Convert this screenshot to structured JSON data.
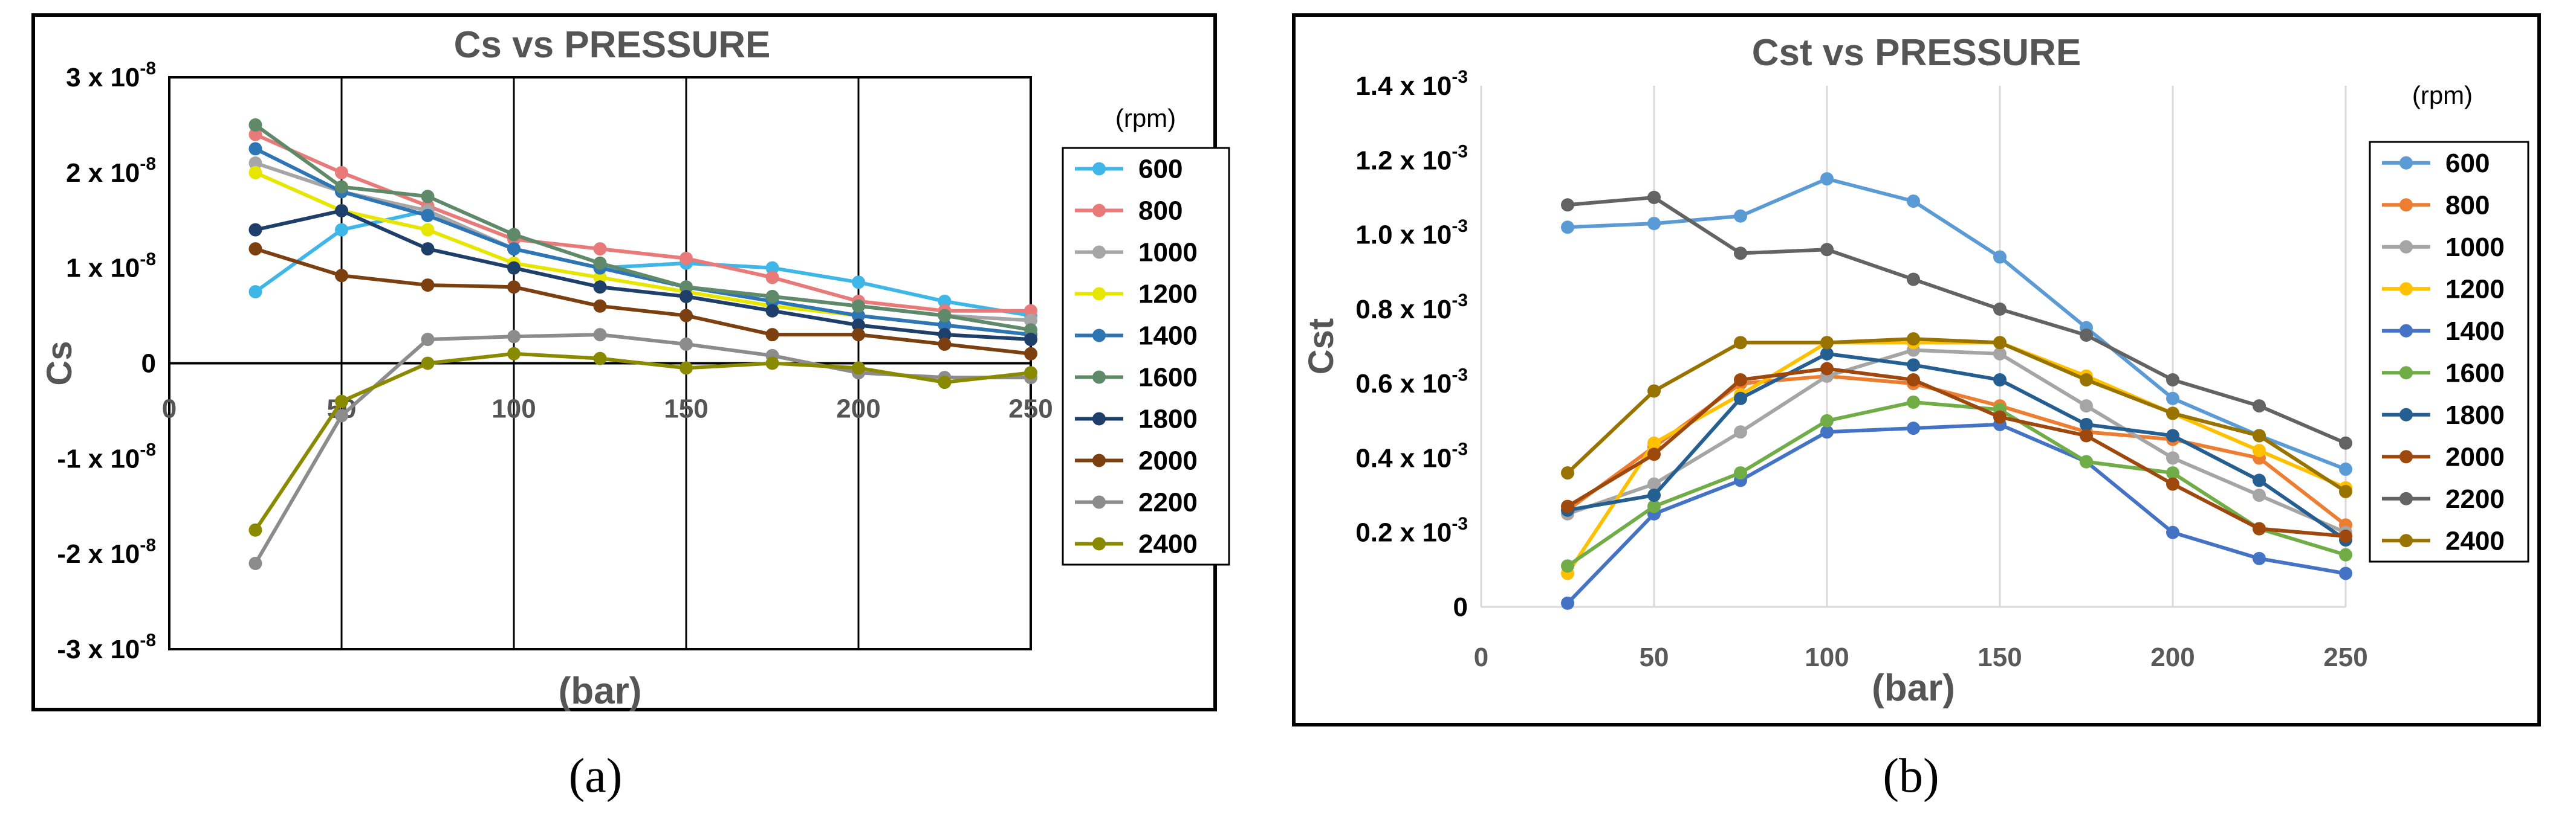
{
  "panel_labels": [
    "(a)",
    "(b)"
  ],
  "chart_data": [
    {
      "type": "line",
      "title": "Cs vs PRESSURE",
      "xlabel": "(bar)",
      "ylabel": "Cs",
      "legend_title": "(rpm)",
      "legend_position": "right",
      "grid": "vertical",
      "x": [
        25,
        50,
        75,
        100,
        125,
        150,
        175,
        200,
        225,
        250
      ],
      "xticks": [
        "0",
        "50",
        "100",
        "150",
        "200",
        "250"
      ],
      "xlim": [
        0,
        250
      ],
      "ylim": [
        -3e-08,
        3e-08
      ],
      "yticks": [
        {
          "mantissa": "3 x 10",
          "exp": "-8",
          "value": 3e-08
        },
        {
          "mantissa": "2 x 10",
          "exp": "-8",
          "value": 2e-08
        },
        {
          "mantissa": "1 x 10",
          "exp": "-8",
          "value": 1e-08
        },
        {
          "mantissa": "0",
          "exp": "",
          "value": 0
        },
        {
          "mantissa": "-1 x 10",
          "exp": "-8",
          "value": -1e-08
        },
        {
          "mantissa": "-2 x 10",
          "exp": "-8",
          "value": -2e-08
        },
        {
          "mantissa": "-3 x 10",
          "exp": "-8",
          "value": -3e-08
        }
      ],
      "series": [
        {
          "name": "600",
          "color": "#3fb6e8",
          "values": [
            7.5e-09,
            1.4e-08,
            1.6e-08,
            1.2e-08,
            1e-08,
            1.05e-08,
            1e-08,
            8.5e-09,
            6.5e-09,
            5e-09
          ]
        },
        {
          "name": "800",
          "color": "#e97a7a",
          "values": [
            2.4e-08,
            2e-08,
            1.65e-08,
            1.3e-08,
            1.2e-08,
            1.1e-08,
            9e-09,
            6.5e-09,
            5.5e-09,
            5.5e-09
          ]
        },
        {
          "name": "1000",
          "color": "#a6a6a6",
          "values": [
            2.1e-08,
            1.8e-08,
            1.6e-08,
            1.2e-08,
            1e-08,
            8e-09,
            7e-09,
            6e-09,
            5e-09,
            4.5e-09
          ]
        },
        {
          "name": "1200",
          "color": "#e6e600",
          "values": [
            2e-08,
            1.6e-08,
            1.4e-08,
            1.05e-08,
            9e-09,
            7.5e-09,
            6e-09,
            5e-09,
            4e-09,
            3e-09
          ]
        },
        {
          "name": "1400",
          "color": "#2e75b6",
          "values": [
            2.25e-08,
            1.8e-08,
            1.55e-08,
            1.2e-08,
            1e-08,
            8e-09,
            6.5e-09,
            5e-09,
            4e-09,
            3e-09
          ]
        },
        {
          "name": "1600",
          "color": "#5f8a6a",
          "values": [
            2.5e-08,
            1.85e-08,
            1.75e-08,
            1.35e-08,
            1.05e-08,
            8e-09,
            7e-09,
            6e-09,
            5e-09,
            3.5e-09
          ]
        },
        {
          "name": "1800",
          "color": "#1f3f6b",
          "values": [
            1.4e-08,
            1.6e-08,
            1.2e-08,
            1e-08,
            8e-09,
            7e-09,
            5.5e-09,
            4e-09,
            3e-09,
            2.5e-09
          ]
        },
        {
          "name": "2000",
          "color": "#7b3f10",
          "values": [
            1.2e-08,
            9.2e-09,
            8.2e-09,
            8e-09,
            6e-09,
            5e-09,
            3e-09,
            3e-09,
            2e-09,
            1e-09
          ]
        },
        {
          "name": "2200",
          "color": "#8c8c8c",
          "values": [
            -2.1e-08,
            -5.5e-09,
            2.5e-09,
            2.8e-09,
            3e-09,
            2e-09,
            8e-10,
            -1e-09,
            -1.5e-09,
            -1.5e-09
          ]
        },
        {
          "name": "2400",
          "color": "#8a8a00",
          "values": [
            -1.75e-08,
            -4e-09,
            0.0,
            1e-09,
            5e-10,
            -5e-10,
            0.0,
            -5e-10,
            -2e-09,
            -1e-09
          ]
        }
      ]
    },
    {
      "type": "line",
      "title": "Cst vs PRESSURE",
      "xlabel": "(bar)",
      "ylabel": "Cst",
      "legend_title": "(rpm)",
      "legend_position": "right",
      "grid": "vertical",
      "x": [
        25,
        50,
        75,
        100,
        125,
        150,
        175,
        200,
        225,
        250
      ],
      "xticks": [
        "0",
        "50",
        "100",
        "150",
        "200",
        "250"
      ],
      "xlim": [
        0,
        250
      ],
      "ylim": [
        0,
        0.0014
      ],
      "yticks": [
        {
          "mantissa": "1.4 x 10",
          "exp": "-3",
          "value": 0.0014
        },
        {
          "mantissa": "1.2 x 10",
          "exp": "-3",
          "value": 0.0012
        },
        {
          "mantissa": "1.0 x 10",
          "exp": "-3",
          "value": 0.001
        },
        {
          "mantissa": "0.8 x 10",
          "exp": "-3",
          "value": 0.0008
        },
        {
          "mantissa": "0.6 x 10",
          "exp": "-3",
          "value": 0.0006
        },
        {
          "mantissa": "0.4 x 10",
          "exp": "-3",
          "value": 0.0004
        },
        {
          "mantissa": "0.2 x 10",
          "exp": "-3",
          "value": 0.0002
        },
        {
          "mantissa": "0",
          "exp": "",
          "value": 0
        }
      ],
      "series": [
        {
          "name": "600",
          "color": "#5b9bd5",
          "values": [
            0.00102,
            0.00103,
            0.00105,
            0.00115,
            0.00109,
            0.00094,
            0.00075,
            0.00056,
            0.00046,
            0.00037
          ]
        },
        {
          "name": "800",
          "color": "#ed7d31",
          "values": [
            0.00026,
            0.00043,
            0.0006,
            0.00062,
            0.0006,
            0.00054,
            0.00047,
            0.00045,
            0.0004,
            0.00022
          ]
        },
        {
          "name": "1000",
          "color": "#a5a5a5",
          "values": [
            0.00025,
            0.00033,
            0.00047,
            0.00062,
            0.00069,
            0.00068,
            0.00054,
            0.0004,
            0.0003,
            0.0002
          ]
        },
        {
          "name": "1200",
          "color": "#ffc000",
          "values": [
            9e-05,
            0.00044,
            0.00057,
            0.00071,
            0.00071,
            0.00071,
            0.00062,
            0.00052,
            0.00042,
            0.00032
          ]
        },
        {
          "name": "1400",
          "color": "#4472c4",
          "values": [
            1e-05,
            0.00025,
            0.00034,
            0.00047,
            0.00048,
            0.00049,
            0.00039,
            0.0002,
            0.00013,
            9e-05
          ]
        },
        {
          "name": "1600",
          "color": "#70ad47",
          "values": [
            0.00011,
            0.00027,
            0.00036,
            0.0005,
            0.00055,
            0.00053,
            0.00039,
            0.00036,
            0.00021,
            0.00014
          ]
        },
        {
          "name": "1800",
          "color": "#255e91",
          "values": [
            0.00026,
            0.0003,
            0.00056,
            0.00068,
            0.00065,
            0.00061,
            0.00049,
            0.00046,
            0.00034,
            0.00018
          ]
        },
        {
          "name": "2000",
          "color": "#9e480e",
          "values": [
            0.00027,
            0.00041,
            0.00061,
            0.00064,
            0.00061,
            0.00051,
            0.00046,
            0.00033,
            0.00021,
            0.00019
          ]
        },
        {
          "name": "2200",
          "color": "#636363",
          "values": [
            0.00108,
            0.0011,
            0.00095,
            0.00096,
            0.00088,
            0.0008,
            0.00073,
            0.00061,
            0.00054,
            0.00044
          ]
        },
        {
          "name": "2400",
          "color": "#997300",
          "values": [
            0.00036,
            0.00058,
            0.00071,
            0.00071,
            0.00072,
            0.00071,
            0.00061,
            0.00052,
            0.00046,
            0.00031
          ]
        }
      ]
    }
  ]
}
